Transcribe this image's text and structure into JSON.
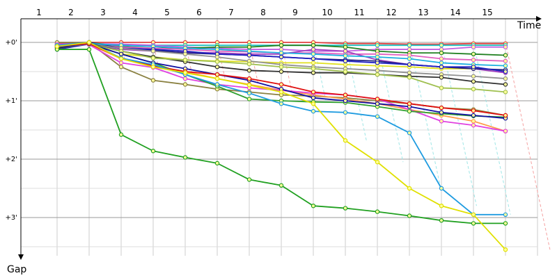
{
  "chart_data": {
    "type": "line",
    "title": "",
    "xlabel": "Time",
    "ylabel": "Gap",
    "x": [
      1,
      2,
      3,
      4,
      5,
      6,
      7,
      8,
      9,
      10,
      11,
      12,
      13,
      14,
      15
    ],
    "x_tick_labels": [
      "1",
      "2",
      "3",
      "4",
      "5",
      "6",
      "7",
      "8",
      "9",
      "10",
      "11",
      "12",
      "13",
      "14",
      "15"
    ],
    "y_tick_labels": [
      "+0'",
      "+1'",
      "+2'",
      "+3'"
    ],
    "ylim": [
      0,
      3.5
    ],
    "grid": true,
    "legend": "none",
    "series": [
      {
        "color": "#e0e000",
        "values": [
          0.07,
          0.0,
          0.28,
          0.42,
          0.52,
          0.62,
          0.73,
          0.85,
          1.05,
          1.68,
          2.05,
          2.5,
          2.8,
          2.95,
          3.55
        ]
      },
      {
        "color": "#20a020",
        "values": [
          0.12,
          0.12,
          1.58,
          1.86,
          1.97,
          2.07,
          2.35,
          2.45,
          2.8,
          2.84,
          2.9,
          2.97,
          3.05,
          3.1,
          3.1
        ]
      },
      {
        "color": "#1e9be0",
        "values": [
          0.05,
          0.0,
          0.27,
          0.38,
          0.55,
          0.72,
          0.87,
          1.05,
          1.18,
          1.2,
          1.27,
          1.55,
          2.5,
          2.95,
          2.95
        ]
      },
      {
        "color": "#e01010",
        "values": [
          0.06,
          0.02,
          0.27,
          0.4,
          0.5,
          0.55,
          0.62,
          0.72,
          0.85,
          0.9,
          0.97,
          1.05,
          1.12,
          1.17,
          1.25
        ]
      },
      {
        "color": "#1010a0",
        "values": [
          0.08,
          0.02,
          0.2,
          0.35,
          0.45,
          0.55,
          0.65,
          0.8,
          0.95,
          1.0,
          1.05,
          1.1,
          1.2,
          1.25,
          1.3
        ]
      },
      {
        "color": "#30a030",
        "values": [
          0.05,
          0.03,
          0.2,
          0.35,
          0.55,
          0.75,
          0.97,
          1.0,
          1.02,
          1.03,
          1.1,
          1.18,
          1.22,
          1.26,
          1.28
        ]
      },
      {
        "color": "#e040e0",
        "values": [
          0.03,
          0.04,
          0.35,
          0.43,
          0.62,
          0.72,
          0.78,
          0.82,
          0.87,
          0.9,
          0.97,
          1.15,
          1.35,
          1.42,
          1.52
        ]
      },
      {
        "color": "#ff9a4a",
        "values": [
          0.07,
          0.03,
          0.28,
          0.4,
          0.5,
          0.62,
          0.72,
          0.82,
          0.9,
          0.97,
          1.05,
          1.15,
          1.25,
          1.35,
          1.52
        ]
      },
      {
        "color": "#a0c050",
        "values": [
          0.08,
          0.03,
          0.15,
          0.27,
          0.3,
          0.33,
          0.37,
          0.42,
          0.45,
          0.5,
          0.55,
          0.6,
          0.78,
          0.8,
          0.85
        ]
      },
      {
        "color": "#8a8040",
        "values": [
          0.0,
          0.0,
          0.42,
          0.65,
          0.72,
          0.8,
          0.85,
          0.9,
          0.92,
          0.95,
          1.0,
          1.05,
          1.12,
          1.15,
          1.25
        ]
      },
      {
        "color": "#303030",
        "values": [
          0.1,
          0.02,
          0.15,
          0.25,
          0.33,
          0.42,
          0.48,
          0.5,
          0.52,
          0.52,
          0.55,
          0.58,
          0.6,
          0.67,
          0.72
        ]
      },
      {
        "color": "#909090",
        "values": [
          0.05,
          0.03,
          0.1,
          0.15,
          0.2,
          0.25,
          0.32,
          0.38,
          0.42,
          0.45,
          0.48,
          0.52,
          0.55,
          0.58,
          0.62
        ]
      },
      {
        "color": "#2020c0",
        "values": [
          0.12,
          0.03,
          0.1,
          0.12,
          0.15,
          0.2,
          0.22,
          0.25,
          0.28,
          0.32,
          0.35,
          0.38,
          0.42,
          0.42,
          0.5
        ]
      },
      {
        "color": "#20b0e0",
        "values": [
          0.05,
          0.02,
          0.05,
          0.07,
          0.1,
          0.12,
          0.15,
          0.18,
          0.2,
          0.23,
          0.25,
          0.28,
          0.35,
          0.38,
          0.4
        ]
      },
      {
        "color": "#202080",
        "values": [
          0.09,
          0.0,
          0.1,
          0.13,
          0.18,
          0.2,
          0.22,
          0.25,
          0.28,
          0.3,
          0.32,
          0.38,
          0.42,
          0.45,
          0.47
        ]
      },
      {
        "color": "#a040c0",
        "values": [
          0.07,
          0.02,
          0.12,
          0.15,
          0.17,
          0.18,
          0.2,
          0.2,
          0.12,
          0.15,
          0.3,
          0.38,
          0.42,
          0.45,
          0.52
        ]
      },
      {
        "color": "#e0e020",
        "values": [
          0.06,
          0.02,
          0.2,
          0.25,
          0.3,
          0.32,
          0.33,
          0.35,
          0.35,
          0.38,
          0.4,
          0.42,
          0.45,
          0.45,
          0.48
        ]
      },
      {
        "color": "#e060c0",
        "values": [
          0.05,
          0.02,
          0.08,
          0.1,
          0.12,
          0.15,
          0.16,
          0.18,
          0.18,
          0.2,
          0.2,
          0.22,
          0.28,
          0.3,
          0.32
        ]
      },
      {
        "color": "#208020",
        "values": [
          0.08,
          0.0,
          0.07,
          0.1,
          0.1,
          0.08,
          0.08,
          0.05,
          0.05,
          0.08,
          0.15,
          0.18,
          0.18,
          0.2,
          0.22
        ]
      },
      {
        "color": "#c060e0",
        "values": [
          0.03,
          0.02,
          0.03,
          0.05,
          0.08,
          0.1,
          0.12,
          0.12,
          0.15,
          0.15,
          0.12,
          0.12,
          0.12,
          0.08,
          0.08
        ]
      },
      {
        "color": "#20c0c0",
        "values": [
          0.03,
          0.02,
          0.05,
          0.05,
          0.05,
          0.05,
          0.05,
          0.05,
          0.05,
          0.05,
          0.05,
          0.05,
          0.05,
          0.05,
          0.05
        ]
      },
      {
        "color": "#e04040",
        "values": [
          0.02,
          0.0,
          0.0,
          0.0,
          0.0,
          0.0,
          0.0,
          0.0,
          0.0,
          0.02,
          0.02,
          0.03,
          0.03,
          0.02,
          0.02
        ]
      }
    ]
  }
}
